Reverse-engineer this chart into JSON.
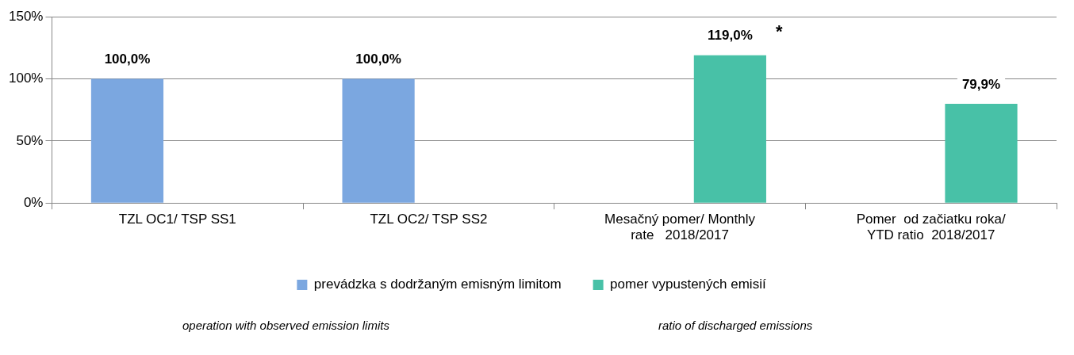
{
  "chart_data": {
    "type": "bar",
    "categories": [
      "TZL OC1/ TSP SS1",
      "TZL OC2/ TSP SS2",
      "Mesačný pomer/ Monthly rate   2018/2017",
      "Pomer  od začiatku roka/ YTD ratio  2018/2017"
    ],
    "series": [
      {
        "name": "prevádzka s dodržaným emisným limitom",
        "color": "#7ba7e0",
        "values": [
          100,
          100,
          null,
          null
        ],
        "value_labels": [
          "100,0%",
          "100,0%",
          null,
          null
        ]
      },
      {
        "name": "pomer vypustených emisií",
        "color": "#48c1a7",
        "values": [
          null,
          null,
          119,
          79.9
        ],
        "value_labels": [
          null,
          null,
          "119,0%",
          "79,9%"
        ]
      }
    ],
    "ylim": [
      0,
      150
    ],
    "yticks": [
      {
        "value": 0,
        "label": "0%"
      },
      {
        "value": 50,
        "label": "50%"
      },
      {
        "value": 100,
        "label": "100%"
      },
      {
        "value": 150,
        "label": "150%"
      }
    ],
    "grid": "y",
    "legend": "bottom",
    "annotations": [
      "*",
      "operation with observed emission limits",
      "ratio of discharged emissions"
    ]
  }
}
